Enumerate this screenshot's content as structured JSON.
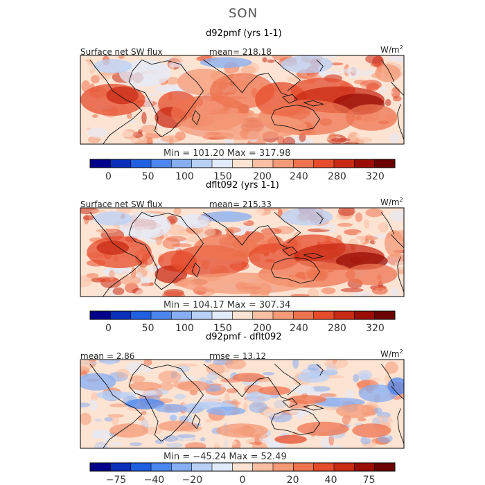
{
  "season": "SON",
  "panels": [
    {
      "title": "d92pmf (yrs 1-1)",
      "left_label": "Surface net SW flux",
      "center_label": "mean= 218.18",
      "units": "W/m",
      "units_sup": "2",
      "minmax": "Min =  101.20  Max =  317.98",
      "cbar_ticks": [
        "0",
        "50",
        "100",
        "150",
        "200",
        "240",
        "280",
        "320"
      ],
      "colors": [
        "#00008b",
        "#0a2fba",
        "#1f5fe0",
        "#4c86ef",
        "#86aef2",
        "#b8d0f6",
        "#e2ebfb",
        "#fde3d2",
        "#f9bfa3",
        "#f49a77",
        "#ee7450",
        "#e54c2c",
        "#c92a14",
        "#9a0e05",
        "#6b0000"
      ]
    },
    {
      "title": "dflt092 (yrs 1-1)",
      "left_label": "Surface net SW flux",
      "center_label": "mean= 215.33",
      "units": "W/m",
      "units_sup": "2",
      "minmax": "Min =  104.17  Max =  307.34",
      "cbar_ticks": [
        "0",
        "50",
        "100",
        "150",
        "200",
        "240",
        "280",
        "320"
      ],
      "colors": [
        "#00008b",
        "#0a2fba",
        "#1f5fe0",
        "#4c86ef",
        "#86aef2",
        "#b8d0f6",
        "#e2ebfb",
        "#fde3d2",
        "#f9bfa3",
        "#f49a77",
        "#ee7450",
        "#e54c2c",
        "#c92a14",
        "#9a0e05",
        "#6b0000"
      ]
    },
    {
      "title": "d92pmf - dflt092",
      "left_label": "mean =    2.86",
      "center_label": "rmse =    13.12",
      "units": "W/m",
      "units_sup": "2",
      "minmax": "Min =  −45.24  Max =   52.49",
      "cbar_ticks": [
        "−75",
        "−40",
        "−20",
        "0",
        "20",
        "40",
        "75"
      ],
      "colors": [
        "#00008b",
        "#0a2fba",
        "#1f5fe0",
        "#4c86ef",
        "#86aef2",
        "#b8d0f6",
        "#e2ebfb",
        "#fde3d2",
        "#f9bfa3",
        "#f49a77",
        "#ee7450",
        "#e54c2c",
        "#c92a14",
        "#9a0e05",
        "#6b0000"
      ]
    }
  ],
  "chart_data": [
    {
      "type": "heatmap",
      "title": "d92pmf (yrs 1-1)",
      "variable": "Surface net SW flux",
      "mean": 218.18,
      "min": 101.2,
      "max": 317.98,
      "units": "W/m2",
      "colorbar_levels": [
        0,
        50,
        100,
        150,
        200,
        240,
        280,
        320
      ]
    },
    {
      "type": "heatmap",
      "title": "dflt092 (yrs 1-1)",
      "variable": "Surface net SW flux",
      "mean": 215.33,
      "min": 104.17,
      "max": 307.34,
      "units": "W/m2",
      "colorbar_levels": [
        0,
        50,
        100,
        150,
        200,
        240,
        280,
        320
      ]
    },
    {
      "type": "heatmap",
      "title": "d92pmf - dflt092",
      "mean": 2.86,
      "rmse": 13.12,
      "min": -45.24,
      "max": 52.49,
      "units": "W/m2",
      "colorbar_levels": [
        -75,
        -40,
        -20,
        0,
        20,
        40,
        75
      ]
    }
  ]
}
